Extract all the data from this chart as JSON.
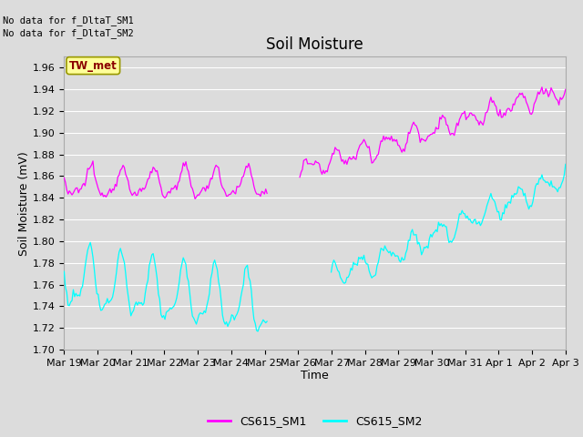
{
  "title": "Soil Moisture",
  "xlabel": "Time",
  "ylabel": "Soil Moisture (mV)",
  "ylim": [
    1.7,
    1.97
  ],
  "yticks": [
    1.7,
    1.72,
    1.74,
    1.76,
    1.78,
    1.8,
    1.82,
    1.84,
    1.86,
    1.88,
    1.9,
    1.92,
    1.94,
    1.96
  ],
  "xtick_labels": [
    "Mar 19",
    "Mar 20",
    "Mar 21",
    "Mar 22",
    "Mar 23",
    "Mar 24",
    "Mar 25",
    "Mar 26",
    "Mar 27",
    "Mar 28",
    "Mar 29",
    "Mar 30",
    "Mar 31",
    "Apr 1",
    "Apr 2",
    "Apr 3"
  ],
  "color_sm1": "#FF00FF",
  "color_sm2": "#00FFFF",
  "legend_sm1": "CS615_SM1",
  "legend_sm2": "CS615_SM2",
  "no_data_text1": "No data for f_DltaT_SM1",
  "no_data_text2": "No data for f_DltaT_SM2",
  "tw_met_label": "TW_met",
  "bg_color": "#DCDCDC",
  "plot_bg_color": "#DCDCDC",
  "grid_color": "#FFFFFF",
  "title_fontsize": 12,
  "axis_label_fontsize": 9,
  "tick_fontsize": 8,
  "legend_fontsize": 9
}
